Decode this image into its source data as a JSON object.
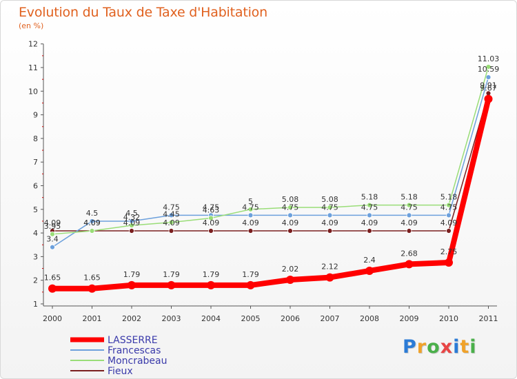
{
  "title": "Evolution du Taux de Taxe d'Habitation",
  "subtitle": "(en %)",
  "logo": {
    "text": "Proxiti",
    "letters": [
      {
        "ch": "P",
        "color": "#2b7bd6"
      },
      {
        "ch": "r",
        "color": "#f0a22a"
      },
      {
        "ch": "o",
        "color": "#4ab04a"
      },
      {
        "ch": "x",
        "color": "#e84545"
      },
      {
        "ch": "i",
        "color": "#2b7bd6"
      },
      {
        "ch": "t",
        "color": "#f0a22a"
      },
      {
        "ch": "i",
        "color": "#4ab04a"
      }
    ]
  },
  "chart_data": {
    "type": "line",
    "title": "Evolution du Taux de Taxe d'Habitation",
    "subtitle": "(en %)",
    "x": [
      "2000",
      "2001",
      "2002",
      "2003",
      "2004",
      "2005",
      "2006",
      "2007",
      "2008",
      "2009",
      "2010",
      "2011"
    ],
    "ylim": [
      1,
      12
    ],
    "yticks": [
      "1",
      "2",
      "3",
      "4",
      "5",
      "6",
      "7",
      "8",
      "9",
      "10",
      "11",
      "12"
    ],
    "grid": false,
    "legend": "bottom-left",
    "series": [
      {
        "name": "LASSERRE",
        "color": "#ff0000",
        "width": 8,
        "values": [
          1.65,
          1.65,
          1.79,
          1.79,
          1.79,
          1.79,
          2.02,
          2.12,
          2.4,
          2.68,
          2.75,
          9.67
        ],
        "labels": [
          "1.65",
          "1.65",
          "1.79",
          "1.79",
          "1.79",
          "1.79",
          "2.02",
          "2.12",
          "2.4",
          "2.68",
          "2.75",
          "9.67"
        ]
      },
      {
        "name": "Francescas",
        "color": "#6ca0dc",
        "width": 1.5,
        "values": [
          3.4,
          4.5,
          4.5,
          4.75,
          4.75,
          4.75,
          4.75,
          4.75,
          4.75,
          4.75,
          4.75,
          10.59
        ],
        "labels": [
          "3.4",
          "4.5",
          "4.5",
          "4.75",
          "4.75",
          "4.75",
          "4.75",
          "4.75",
          "4.75",
          "4.75",
          "4.75",
          "10.59"
        ]
      },
      {
        "name": "Moncrabeau",
        "color": "#99dd77",
        "width": 1.5,
        "values": [
          3.95,
          4.09,
          4.32,
          4.45,
          4.63,
          5,
          5.08,
          5.08,
          5.18,
          5.18,
          5.18,
          11.03
        ],
        "labels": [
          "3.95",
          "4.09",
          "4.32",
          "4.45",
          "4.63",
          "5",
          "5.08",
          "5.08",
          "5.18",
          "5.18",
          "5.18",
          "11.03"
        ]
      },
      {
        "name": "Fieux",
        "color": "#7a1f1f",
        "width": 1.5,
        "values": [
          4.09,
          4.09,
          4.09,
          4.09,
          4.09,
          4.09,
          4.09,
          4.09,
          4.09,
          4.09,
          4.09,
          9.91
        ],
        "labels": [
          "4.09",
          "4.09",
          "4.09",
          "4.09",
          "4.09",
          "4.09",
          "4.09",
          "4.09",
          "4.09",
          "4.09",
          "4.09",
          "9.91"
        ]
      }
    ]
  }
}
